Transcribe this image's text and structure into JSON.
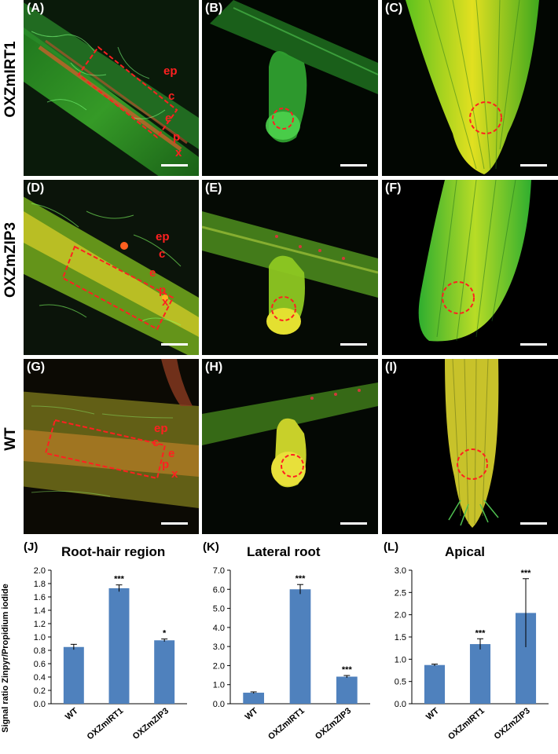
{
  "rows": [
    {
      "label": "OXZmIRT1"
    },
    {
      "label": "OXZmZIP3"
    },
    {
      "label": "WT"
    }
  ],
  "panels": [
    {
      "tag": "(A)",
      "annotations": [
        "ep",
        "c",
        "e",
        "p",
        "x"
      ]
    },
    {
      "tag": "(B)"
    },
    {
      "tag": "(C)"
    },
    {
      "tag": "(D)",
      "annotations": [
        "ep",
        "c",
        "e",
        "p",
        "x"
      ]
    },
    {
      "tag": "(E)"
    },
    {
      "tag": "(F)"
    },
    {
      "tag": "(G)",
      "annotations": [
        "ep",
        "c",
        "e",
        "p",
        "x"
      ]
    },
    {
      "tag": "(H)"
    },
    {
      "tag": "(I)"
    }
  ],
  "shared_ylabel": "Signal ratio Zinpyr/Propidium iodide",
  "colors": {
    "bar": "#4f81bd",
    "annotation": "#ff2020",
    "green": "#2ecc2e",
    "yellow": "#e3e31a"
  },
  "chart_data": [
    {
      "tag": "(J)",
      "title": "Root-hair region",
      "type": "bar",
      "categories": [
        "WT",
        "OXZmIRT1",
        "OXZmZIP3"
      ],
      "values": [
        0.85,
        1.73,
        0.95
      ],
      "errors": [
        0.04,
        0.05,
        0.02
      ],
      "significance": [
        "",
        "***",
        "*"
      ],
      "ylim": [
        0,
        2.0
      ],
      "ticks": [
        "0.0",
        "0.2",
        "0.4",
        "0.6",
        "0.8",
        "1.0",
        "1.2",
        "1.4",
        "1.6",
        "1.8",
        "2.0"
      ]
    },
    {
      "tag": "(K)",
      "title": "Lateral root",
      "type": "bar",
      "categories": [
        "WT",
        "OXZmIRT1",
        "OXZmZIP3"
      ],
      "values": [
        0.58,
        6.0,
        1.42
      ],
      "errors": [
        0.04,
        0.25,
        0.06
      ],
      "significance": [
        "",
        "***",
        "***"
      ],
      "ylim": [
        0,
        7.0
      ],
      "ticks": [
        "0.0",
        "1.0",
        "2.0",
        "3.0",
        "4.0",
        "5.0",
        "6.0",
        "7.0"
      ]
    },
    {
      "tag": "(L)",
      "title": "Apical",
      "type": "bar",
      "categories": [
        "WT",
        "OXZmIRT1",
        "OXZmZIP3"
      ],
      "values": [
        0.87,
        1.34,
        2.04
      ],
      "errors": [
        0.02,
        0.12,
        0.77
      ],
      "significance": [
        "",
        "***",
        "***"
      ],
      "ylim": [
        0,
        3.0
      ],
      "ticks": [
        "0.0",
        "0.5",
        "1.0",
        "1.5",
        "2.0",
        "2.5",
        "3.0"
      ]
    }
  ]
}
